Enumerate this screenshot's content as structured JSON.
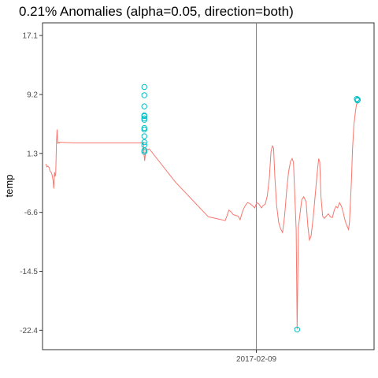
{
  "chart_data": {
    "type": "line",
    "title": "0.21% Anomalies (alpha=0.05, direction=both)",
    "xlabel": "",
    "ylabel": "temp",
    "x_tick_labels": [
      "2017-02-09"
    ],
    "y_ticks": [
      -22.4,
      -14.5,
      -6.6,
      1.3,
      9.2,
      17.1
    ],
    "y_tick_labels": [
      "-22.4",
      "-14.5",
      "-6.6",
      "1.3",
      "9.2",
      "17.1"
    ],
    "xlim": [
      0,
      100
    ],
    "ylim": [
      -25.0,
      18.8
    ],
    "vline_x": 64.5,
    "grid": false,
    "line_color": "#f8766d",
    "anomaly_color": "#00bfc4",
    "series": [
      {
        "values": [
          [
            1.0,
            -0.1
          ],
          [
            1.3,
            -0.5
          ],
          [
            1.6,
            -0.4
          ],
          [
            2.0,
            -0.6
          ],
          [
            2.3,
            -1.1
          ],
          [
            2.6,
            -1.2
          ],
          [
            2.9,
            -1.6
          ],
          [
            3.2,
            -2.4
          ],
          [
            3.4,
            -3.4
          ],
          [
            3.6,
            -1.2
          ],
          [
            3.8,
            -1.8
          ],
          [
            4.0,
            -1.3
          ],
          [
            4.2,
            2.8
          ],
          [
            4.4,
            4.5
          ],
          [
            4.6,
            2.6
          ],
          [
            4.8,
            2.8
          ],
          [
            5.1,
            2.7
          ],
          [
            5.2,
            2.8
          ],
          [
            10,
            2.7
          ],
          [
            15,
            2.7
          ],
          [
            20,
            2.7
          ],
          [
            25,
            2.7
          ],
          [
            30,
            2.7
          ],
          [
            30.4,
            2.8
          ],
          [
            30.6,
            1.3
          ],
          [
            30.8,
            0.3
          ],
          [
            31.0,
            1.1
          ],
          [
            31.2,
            1.6
          ],
          [
            31.5,
            1.9
          ],
          [
            31.8,
            1.8
          ],
          [
            32.2,
            1.9
          ],
          [
            40,
            -2.5
          ],
          [
            50,
            -7.2
          ],
          [
            55.1,
            -7.7
          ],
          [
            55.6,
            -7.1
          ],
          [
            56.2,
            -6.3
          ],
          [
            56.8,
            -6.5
          ],
          [
            57.5,
            -6.9
          ],
          [
            58.2,
            -7.0
          ],
          [
            59.0,
            -7.1
          ],
          [
            59.6,
            -7.6
          ],
          [
            60.3,
            -6.5
          ],
          [
            61.0,
            -5.8
          ],
          [
            61.8,
            -5.3
          ],
          [
            62.5,
            -5.4
          ],
          [
            63.3,
            -5.7
          ],
          [
            64.0,
            -6.0
          ],
          [
            64.6,
            -5.3
          ],
          [
            65.3,
            -5.5
          ],
          [
            66.0,
            -6.0
          ],
          [
            66.5,
            -5.7
          ],
          [
            67.2,
            -5.5
          ],
          [
            67.8,
            -4.4
          ],
          [
            68.4,
            -2.0
          ],
          [
            68.9,
            1.5
          ],
          [
            69.3,
            2.3
          ],
          [
            69.7,
            2.0
          ],
          [
            70.1,
            -2.0
          ],
          [
            70.6,
            -5.6
          ],
          [
            71.2,
            -7.9
          ],
          [
            71.8,
            -8.8
          ],
          [
            72.4,
            -9.3
          ],
          [
            73.0,
            -7.2
          ],
          [
            73.6,
            -3.8
          ],
          [
            74.2,
            -1.2
          ],
          [
            74.8,
            0.2
          ],
          [
            75.3,
            0.6
          ],
          [
            75.7,
            0.1
          ],
          [
            76.1,
            -4.5
          ],
          [
            76.5,
            -8.9
          ],
          [
            76.8,
            -22.3
          ],
          [
            77.2,
            -8.6
          ],
          [
            77.6,
            -7.0
          ],
          [
            78.2,
            -4.9
          ],
          [
            78.8,
            -4.5
          ],
          [
            79.5,
            -5.2
          ],
          [
            80.0,
            -8.3
          ],
          [
            80.5,
            -10.3
          ],
          [
            81.0,
            -9.8
          ],
          [
            81.6,
            -7.5
          ],
          [
            82.2,
            -4.5
          ],
          [
            82.8,
            -1.5
          ],
          [
            83.3,
            0.6
          ],
          [
            83.6,
            0.2
          ],
          [
            84.0,
            -4.5
          ],
          [
            84.5,
            -7.1
          ],
          [
            85.0,
            -7.4
          ],
          [
            85.6,
            -7.1
          ],
          [
            86.2,
            -6.8
          ],
          [
            86.8,
            -7.2
          ],
          [
            87.4,
            -7.3
          ],
          [
            88.0,
            -6.3
          ],
          [
            88.5,
            -5.8
          ],
          [
            89.0,
            -6.0
          ],
          [
            89.6,
            -5.3
          ],
          [
            90.2,
            -5.8
          ],
          [
            90.7,
            -6.6
          ],
          [
            91.3,
            -7.8
          ],
          [
            91.8,
            -8.4
          ],
          [
            92.3,
            -8.9
          ],
          [
            92.6,
            -7.9
          ],
          [
            92.9,
            -5.0
          ],
          [
            93.2,
            -2.0
          ],
          [
            93.5,
            1.8
          ],
          [
            93.9,
            5.0
          ],
          [
            94.3,
            6.6
          ],
          [
            94.7,
            7.9
          ],
          [
            95.2,
            8.1
          ]
        ]
      }
    ],
    "anomalies": [
      [
        30.7,
        10.2
      ],
      [
        30.7,
        9.1
      ],
      [
        30.7,
        7.6
      ],
      [
        30.7,
        6.4
      ],
      [
        30.7,
        6.3
      ],
      [
        30.7,
        6.0
      ],
      [
        30.7,
        5.8
      ],
      [
        30.7,
        4.7
      ],
      [
        30.7,
        4.5
      ],
      [
        30.7,
        3.6
      ],
      [
        30.7,
        2.8
      ],
      [
        30.7,
        2.4
      ],
      [
        30.7,
        1.7
      ],
      [
        30.7,
        1.5
      ],
      [
        76.8,
        -22.3
      ],
      [
        94.8,
        8.6
      ],
      [
        95.0,
        8.4
      ],
      [
        95.1,
        8.5
      ]
    ]
  }
}
